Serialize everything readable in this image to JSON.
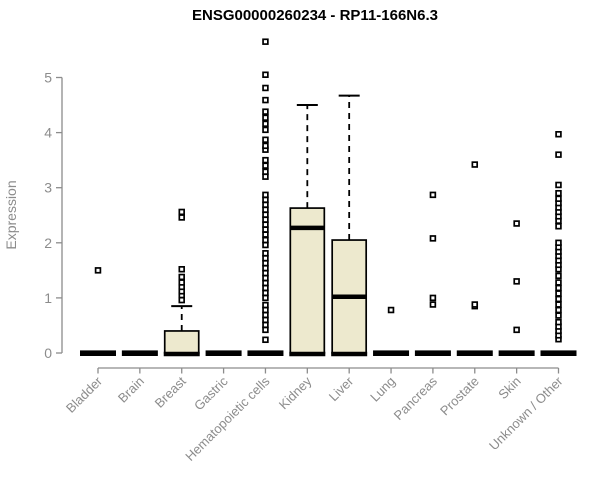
{
  "chart_data": {
    "type": "boxplot",
    "title": "ENSG00000260234 - RP11-166N6.3",
    "ylabel": "Expression",
    "xlabel": "",
    "ylim": [
      0,
      5
    ],
    "yticks": [
      0,
      1,
      2,
      3,
      4,
      5
    ],
    "grid": false,
    "legend": "none",
    "colors": {
      "box_fill": "#ede9ce",
      "box_stroke": "#000000",
      "median": "#000000",
      "axis": "#8c8c8c",
      "text_gray": "#8c8c8c",
      "title_color": "#000000",
      "outlier_stroke": "#000000",
      "outlier_fill": "#ffffff",
      "background": "#ffffff"
    },
    "categories": [
      "Bladder",
      "Brain",
      "Breast",
      "Gastric",
      "Hematopoietic cells",
      "Kidney",
      "Liver",
      "Lung",
      "Pancreas",
      "Prostate",
      "Skin",
      "Unknown / Other"
    ],
    "boxes": [
      {
        "category": "Bladder",
        "q1": 0,
        "median": 0,
        "q3": 0,
        "whisker_low": 0,
        "whisker_high": 0,
        "outliers": [
          1.5
        ]
      },
      {
        "category": "Brain",
        "q1": 0,
        "median": 0,
        "q3": 0,
        "whisker_low": 0,
        "whisker_high": 0,
        "outliers": []
      },
      {
        "category": "Breast",
        "q1": 0,
        "median": 0,
        "q3": 0.4,
        "whisker_low": 0,
        "whisker_high": 0.85,
        "outliers": [
          0.96,
          1.05,
          1.12,
          1.2,
          1.28,
          1.38,
          1.52,
          2.46,
          2.56
        ]
      },
      {
        "category": "Gastric",
        "q1": 0,
        "median": 0,
        "q3": 0,
        "whisker_low": 0,
        "whisker_high": 0,
        "outliers": []
      },
      {
        "category": "Hematopoietic cells",
        "q1": 0,
        "median": 0,
        "q3": 0,
        "whisker_low": 0,
        "whisker_high": 0,
        "outliers": [
          0.24,
          0.42,
          0.51,
          0.6,
          0.69,
          0.78,
          0.87,
          1.0,
          1.09,
          1.18,
          1.27,
          1.36,
          1.45,
          1.54,
          1.63,
          1.72,
          1.81,
          1.96,
          2.05,
          2.15,
          2.24,
          2.33,
          2.42,
          2.51,
          2.6,
          2.69,
          2.78,
          2.87,
          3.2,
          3.29,
          3.4,
          3.5,
          3.69,
          3.76,
          3.87,
          4.05,
          4.16,
          4.27,
          4.38,
          4.59,
          4.81,
          5.05,
          5.65
        ]
      },
      {
        "category": "Kidney",
        "q1": 0,
        "median": 2.27,
        "q3": 2.63,
        "whisker_low": 0,
        "whisker_high": 4.5,
        "outliers": []
      },
      {
        "category": "Liver",
        "q1": 0,
        "median": 1.02,
        "q3": 2.05,
        "whisker_low": 0,
        "whisker_high": 4.67,
        "outliers": []
      },
      {
        "category": "Lung",
        "q1": 0,
        "median": 0,
        "q3": 0,
        "whisker_low": 0,
        "whisker_high": 0,
        "outliers": [
          0.78
        ]
      },
      {
        "category": "Pancreas",
        "q1": 0,
        "median": 0,
        "q3": 0,
        "whisker_low": 0,
        "whisker_high": 0,
        "outliers": [
          0.88,
          1.0,
          2.08,
          2.87
        ]
      },
      {
        "category": "Prostate",
        "q1": 0,
        "median": 0,
        "q3": 0,
        "whisker_low": 0,
        "whisker_high": 0,
        "outliers": [
          0.85,
          0.88,
          3.42
        ]
      },
      {
        "category": "Skin",
        "q1": 0,
        "median": 0,
        "q3": 0,
        "whisker_low": 0,
        "whisker_high": 0,
        "outliers": [
          0.42,
          1.3,
          2.35
        ]
      },
      {
        "category": "Unknown / Other",
        "q1": 0,
        "median": 0,
        "q3": 0,
        "whisker_low": 0,
        "whisker_high": 0,
        "outliers": [
          0.25,
          0.32,
          0.4,
          0.48,
          0.56,
          0.68,
          0.78,
          0.88,
          0.98,
          1.08,
          1.18,
          1.28,
          1.4,
          1.52,
          1.6,
          1.68,
          1.76,
          1.84,
          1.92,
          2.0,
          2.3,
          2.4,
          2.48,
          2.56,
          2.64,
          2.72,
          2.8,
          2.9,
          3.05,
          3.6,
          3.97
        ]
      }
    ]
  }
}
